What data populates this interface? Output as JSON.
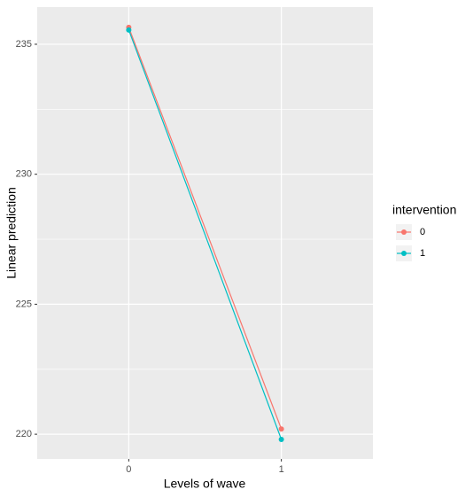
{
  "chart_data": {
    "type": "line",
    "x_label": "Levels of wave",
    "y_label": "Linear prediction",
    "categories": [
      "0",
      "1"
    ],
    "series": [
      {
        "name": "0",
        "color": "#F8766D",
        "values": [
          235.65,
          220.2
        ]
      },
      {
        "name": "1",
        "color": "#00BFC4",
        "values": [
          235.55,
          219.8
        ]
      }
    ],
    "legend_title": "intervention",
    "ylim": [
      219.05,
      236.43
    ],
    "yticks": [
      220,
      225,
      230,
      235
    ],
    "grid": true,
    "legend": "right"
  }
}
